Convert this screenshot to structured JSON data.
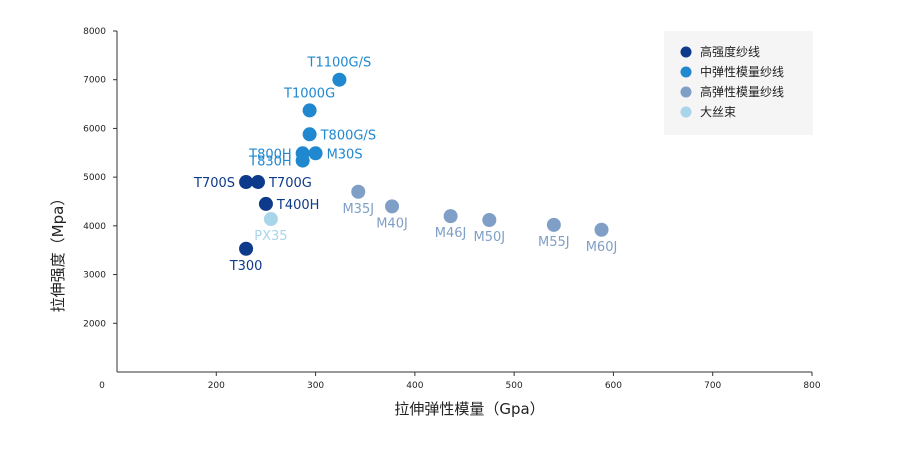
{
  "chart_data": {
    "type": "scatter",
    "xlabel": "拉伸弹性模量（Gpa）",
    "ylabel": "拉伸强度（Mpa）",
    "xlim": [
      100,
      800
    ],
    "ylim": [
      1000,
      8000
    ],
    "x_ticks": [
      200,
      300,
      400,
      500,
      600,
      700,
      800
    ],
    "x_tick_labels": [
      "200",
      "300",
      "400",
      "500",
      "600",
      "700",
      "800"
    ],
    "x_origin_label": "0",
    "y_ticks": [
      2000,
      3000,
      4000,
      5000,
      6000,
      7000,
      8000
    ],
    "y_tick_labels": [
      "2000",
      "3000",
      "4000",
      "5000",
      "6000",
      "7000",
      "8000"
    ],
    "grid": false,
    "legend_position": "top-right",
    "series": [
      {
        "name": "高强度纱线",
        "color": "#0d3a8a",
        "points": [
          {
            "label": "T700S",
            "x": 230,
            "y": 4900,
            "label_pos": "left"
          },
          {
            "label": "T700G",
            "x": 242,
            "y": 4900,
            "label_pos": "right"
          },
          {
            "label": "T400H",
            "x": 250,
            "y": 4450,
            "label_pos": "right"
          },
          {
            "label": "T300",
            "x": 230,
            "y": 3530,
            "label_pos": "below"
          }
        ]
      },
      {
        "name": "中弹性模量纱线",
        "color": "#1f88cf",
        "points": [
          {
            "label": "T1100G/S",
            "x": 324,
            "y": 7000,
            "label_pos": "above"
          },
          {
            "label": "T1000G",
            "x": 294,
            "y": 6370,
            "label_pos": "above"
          },
          {
            "label": "T800G/S",
            "x": 294,
            "y": 5880,
            "label_pos": "right"
          },
          {
            "label": "T800H",
            "x": 287,
            "y": 5490,
            "label_pos": "left"
          },
          {
            "label": "M30S",
            "x": 300,
            "y": 5490,
            "label_pos": "right"
          },
          {
            "label": "T830H",
            "x": 287,
            "y": 5340,
            "label_pos": "left"
          }
        ]
      },
      {
        "name": "高弹性模量纱线",
        "color": "#7f9fc6",
        "points": [
          {
            "label": "M35J",
            "x": 343,
            "y": 4700,
            "label_pos": "below"
          },
          {
            "label": "M40J",
            "x": 377,
            "y": 4400,
            "label_pos": "below"
          },
          {
            "label": "M46J",
            "x": 436,
            "y": 4200,
            "label_pos": "below"
          },
          {
            "label": "M50J",
            "x": 475,
            "y": 4120,
            "label_pos": "below"
          },
          {
            "label": "M55J",
            "x": 540,
            "y": 4020,
            "label_pos": "below"
          },
          {
            "label": "M60J",
            "x": 588,
            "y": 3920,
            "label_pos": "below"
          }
        ]
      },
      {
        "name": "大丝束",
        "color": "#a9d5ea",
        "points": [
          {
            "label": "PX35",
            "x": 255,
            "y": 4140,
            "label_pos": "below"
          }
        ]
      }
    ]
  }
}
